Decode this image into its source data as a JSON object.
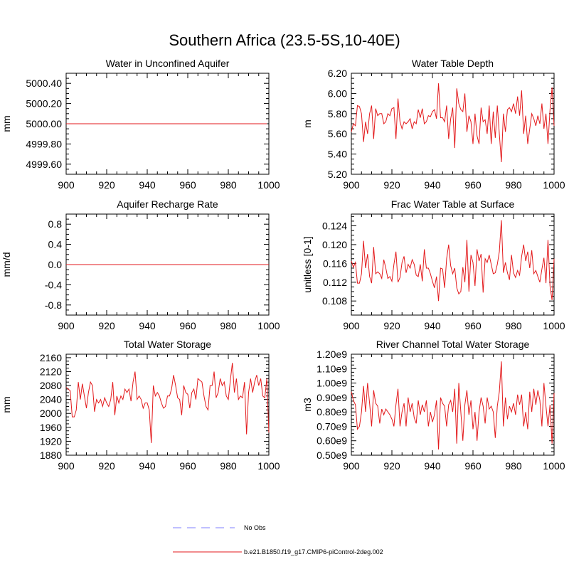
{
  "figure": {
    "title": "Southern Africa (23.5-5S,10-40E)",
    "series_color": "#e31a1c",
    "obs_color": "#9999ff"
  },
  "legend": {
    "entries": [
      {
        "label": "No Obs",
        "style": "dashed",
        "color": "#9999ff"
      },
      {
        "label": "b.e21.B1850.f19_g17.CMIP6-piControl-2deg.002",
        "style": "solid",
        "color": "#e31a1c"
      }
    ]
  },
  "chart_data": [
    {
      "type": "line",
      "title": "Water in Unconfined Aquifer",
      "ylabel": "mm",
      "xlim": [
        900,
        1000
      ],
      "ylim": [
        4999.5,
        5000.5
      ],
      "xticks": [
        900,
        920,
        940,
        960,
        980,
        1000
      ],
      "xtick_labels": [
        "900",
        "920",
        "940",
        "960",
        "980",
        "1000"
      ],
      "yticks": [
        4999.6,
        4999.8,
        5000.0,
        5000.2,
        5000.4
      ],
      "ytick_labels": [
        "4999.60",
        "4999.80",
        "5000.00",
        "5000.20",
        "5000.40"
      ],
      "x_start": 900,
      "x_step": 1,
      "values": [
        5000,
        5000,
        5000,
        5000,
        5000,
        5000,
        5000,
        5000,
        5000,
        5000,
        5000,
        5000,
        5000,
        5000,
        5000,
        5000,
        5000,
        5000,
        5000,
        5000,
        5000,
        5000,
        5000,
        5000,
        5000,
        5000,
        5000,
        5000,
        5000,
        5000,
        5000,
        5000,
        5000,
        5000,
        5000,
        5000,
        5000,
        5000,
        5000,
        5000,
        5000,
        5000,
        5000,
        5000,
        5000,
        5000,
        5000,
        5000,
        5000,
        5000,
        5000,
        5000,
        5000,
        5000,
        5000,
        5000,
        5000,
        5000,
        5000,
        5000,
        5000,
        5000,
        5000,
        5000,
        5000,
        5000,
        5000,
        5000,
        5000,
        5000,
        5000,
        5000,
        5000,
        5000,
        5000,
        5000,
        5000,
        5000,
        5000,
        5000,
        5000,
        5000,
        5000,
        5000,
        5000,
        5000,
        5000,
        5000,
        5000,
        5000,
        5000,
        5000,
        5000,
        5000,
        5000,
        5000,
        5000,
        5000,
        5000,
        5000
      ]
    },
    {
      "type": "line",
      "title": "Water Table Depth",
      "ylabel": "m",
      "xlim": [
        900,
        1000
      ],
      "ylim": [
        5.2,
        6.2
      ],
      "xticks": [
        900,
        920,
        940,
        960,
        980,
        1000
      ],
      "xtick_labels": [
        "900",
        "920",
        "940",
        "960",
        "980",
        "1000"
      ],
      "yticks": [
        5.2,
        5.4,
        5.6,
        5.8,
        6.0,
        6.2
      ],
      "ytick_labels": [
        "5.20",
        "5.40",
        "5.60",
        "5.80",
        "6.00",
        "6.20"
      ],
      "x_start": 900,
      "x_step": 1,
      "values": [
        5.62,
        5.7,
        5.68,
        5.88,
        5.87,
        5.8,
        5.52,
        5.72,
        5.6,
        5.8,
        5.88,
        5.55,
        5.85,
        5.78,
        5.8,
        5.8,
        5.7,
        5.72,
        5.8,
        5.78,
        5.85,
        5.86,
        5.55,
        5.95,
        5.72,
        5.65,
        5.72,
        5.7,
        5.72,
        5.75,
        5.65,
        5.72,
        5.7,
        5.84,
        5.76,
        5.85,
        5.7,
        5.72,
        5.78,
        5.77,
        5.82,
        5.84,
        5.75,
        6.1,
        5.76,
        5.76,
        5.72,
        5.88,
        5.55,
        5.75,
        5.86,
        5.46,
        6.05,
        5.9,
        5.84,
        5.82,
        6.0,
        5.62,
        5.78,
        5.72,
        5.5,
        5.8,
        5.58,
        5.5,
        5.86,
        5.72,
        5.74,
        5.6,
        5.88,
        5.5,
        5.82,
        5.56,
        5.88,
        5.6,
        5.32,
        5.8,
        5.62,
        5.84,
        5.86,
        5.82,
        5.9,
        5.8,
        5.97,
        5.78,
        6.03,
        5.6,
        5.78,
        5.5,
        5.65,
        5.8,
        5.75,
        5.68,
        5.78,
        5.7,
        5.9,
        5.65,
        5.8,
        5.5,
        5.84,
        6.06,
        5.68
      ]
    },
    {
      "type": "line",
      "title": "Aquifer Recharge Rate",
      "ylabel": "mm/d",
      "xlim": [
        900,
        1000
      ],
      "ylim": [
        -1.0,
        1.0
      ],
      "xticks": [
        900,
        920,
        940,
        960,
        980,
        1000
      ],
      "xtick_labels": [
        "900",
        "920",
        "940",
        "960",
        "980",
        "1000"
      ],
      "yticks": [
        -0.8,
        -0.4,
        0.0,
        0.4,
        0.8
      ],
      "ytick_labels": [
        "-0.8",
        "-0.4",
        "0.0",
        "0.4",
        "0.8"
      ],
      "x_start": 900,
      "x_step": 1,
      "values": [
        0,
        0,
        0,
        0,
        0,
        0,
        0,
        0,
        0,
        0,
        0,
        0,
        0,
        0,
        0,
        0,
        0,
        0,
        0,
        0,
        0,
        0,
        0,
        0,
        0,
        0,
        0,
        0,
        0,
        0,
        0,
        0,
        0,
        0,
        0,
        0,
        0,
        0,
        0,
        0,
        0,
        0,
        0,
        0,
        0,
        0,
        0,
        0,
        0,
        0,
        0,
        0,
        0,
        0,
        0,
        0,
        0,
        0,
        0,
        0,
        0,
        0,
        0,
        0,
        0,
        0,
        0,
        0,
        0,
        0,
        0,
        0,
        0,
        0,
        0,
        0,
        0,
        0,
        0,
        0,
        0,
        0,
        0,
        0,
        0,
        0,
        0,
        0,
        0,
        0,
        0,
        0,
        0,
        0,
        0,
        0,
        0,
        0,
        0,
        0,
        0
      ]
    },
    {
      "type": "line",
      "title": "Frac Water Table at Surface",
      "ylabel": "unitless [0-1]",
      "xlim": [
        900,
        1000
      ],
      "ylim": [
        0.105,
        0.1265
      ],
      "xticks": [
        900,
        920,
        940,
        960,
        980,
        1000
      ],
      "xtick_labels": [
        "900",
        "920",
        "940",
        "960",
        "980",
        "1000"
      ],
      "yticks": [
        0.108,
        0.112,
        0.116,
        0.12,
        0.124
      ],
      "ytick_labels": [
        "0.108",
        "0.112",
        "0.116",
        "0.120",
        "0.124"
      ],
      "x_start": 900,
      "x_step": 1,
      "values": [
        0.1165,
        0.1152,
        0.1162,
        0.1118,
        0.1118,
        0.1138,
        0.1208,
        0.115,
        0.118,
        0.1132,
        0.1118,
        0.1195,
        0.1138,
        0.1142,
        0.1138,
        0.1128,
        0.1168,
        0.115,
        0.1128,
        0.1132,
        0.1122,
        0.1158,
        0.1185,
        0.112,
        0.113,
        0.1162,
        0.1175,
        0.114,
        0.1158,
        0.115,
        0.1168,
        0.1158,
        0.1135,
        0.1132,
        0.1158,
        0.1122,
        0.119,
        0.115,
        0.115,
        0.1138,
        0.1122,
        0.1108,
        0.1132,
        0.108,
        0.115,
        0.1148,
        0.1108,
        0.117,
        0.12,
        0.1155,
        0.1138,
        0.115,
        0.1108,
        0.1095,
        0.11,
        0.1152,
        0.112,
        0.121,
        0.11,
        0.1178,
        0.1162,
        0.1112,
        0.119,
        0.1165,
        0.118,
        0.1098,
        0.117,
        0.1162,
        0.1178,
        0.1158,
        0.1138,
        0.114,
        0.1158,
        0.1185,
        0.1252,
        0.114,
        0.1162,
        0.114,
        0.1125,
        0.1178,
        0.114,
        0.113,
        0.1145,
        0.1135,
        0.1175,
        0.12,
        0.1165,
        0.1185,
        0.115,
        0.1188,
        0.1138,
        0.1145,
        0.1132,
        0.112,
        0.1148,
        0.1172,
        0.1118,
        0.121,
        0.1112,
        0.1082,
        0.117
      ]
    },
    {
      "type": "line",
      "title": "Total Water Storage",
      "ylabel": "mm",
      "xlim": [
        900,
        1000
      ],
      "ylim": [
        1880,
        2170
      ],
      "xticks": [
        900,
        920,
        940,
        960,
        980,
        1000
      ],
      "xtick_labels": [
        "900",
        "920",
        "940",
        "960",
        "980",
        "1000"
      ],
      "yticks": [
        1880,
        1920,
        1960,
        2000,
        2040,
        2080,
        2120,
        2160
      ],
      "ytick_labels": [
        "1880",
        "1920",
        "1960",
        "2000",
        "2040",
        "2080",
        "2120",
        "2160"
      ],
      "x_start": 900,
      "x_step": 1,
      "values": [
        2075,
        2070,
        2065,
        1990,
        1990,
        2010,
        2090,
        2040,
        2085,
        2050,
        2015,
        2060,
        2090,
        2080,
        2005,
        2040,
        2030,
        2040,
        2020,
        2045,
        2030,
        2020,
        2040,
        2090,
        1995,
        2050,
        2030,
        2050,
        2040,
        2070,
        2060,
        2070,
        2035,
        2090,
        2120,
        2040,
        2050,
        2040,
        2015,
        2030,
        2030,
        2010,
        1915,
        2080,
        2050,
        2060,
        2050,
        2030,
        2015,
        2020,
        2050,
        2050,
        2070,
        2110,
        2080,
        2045,
        2040,
        1995,
        2080,
        2060,
        2055,
        2015,
        2060,
        2070,
        2040,
        2100,
        2095,
        2090,
        2050,
        2020,
        2010,
        2080,
        2080,
        2120,
        2045,
        2060,
        2100,
        2080,
        2090,
        2050,
        2040,
        2095,
        2145,
        2060,
        2100,
        2040,
        2050,
        2045,
        2090,
        1940,
        2060,
        2100,
        2060,
        2090,
        2110,
        2080,
        2100,
        2050,
        2045,
        2100,
        1945
      ]
    },
    {
      "type": "line",
      "title": "River Channel Total Water Storage",
      "ylabel": "m3",
      "xlim": [
        900,
        1000
      ],
      "ylim": [
        0.5,
        1.2
      ],
      "xticks": [
        900,
        920,
        940,
        960,
        980,
        1000
      ],
      "xtick_labels": [
        "900",
        "920",
        "940",
        "960",
        "980",
        "1000"
      ],
      "yticks": [
        0.5,
        0.6,
        0.7,
        0.8,
        0.9,
        1.0,
        1.1,
        1.2
      ],
      "ytick_labels": [
        "0.50e9",
        "0.60e9",
        "0.70e9",
        "0.80e9",
        "0.90e9",
        "1.00e9",
        "1.10e9",
        "1.20e9"
      ],
      "x_start": 900,
      "x_step": 1,
      "values": [
        0.94,
        0.88,
        0.85,
        0.68,
        0.7,
        0.8,
        0.98,
        0.8,
        1.0,
        0.86,
        0.7,
        0.95,
        0.86,
        0.84,
        0.72,
        0.82,
        0.78,
        0.82,
        0.8,
        0.78,
        0.75,
        0.7,
        0.85,
        0.96,
        0.7,
        0.8,
        0.86,
        0.7,
        0.9,
        0.8,
        0.86,
        0.76,
        0.72,
        0.88,
        0.78,
        0.85,
        0.8,
        0.88,
        0.7,
        0.8,
        0.73,
        0.78,
        0.88,
        0.54,
        0.9,
        0.86,
        0.84,
        0.7,
        0.85,
        0.88,
        0.8,
        0.96,
        0.58,
        1.0,
        0.8,
        0.6,
        0.85,
        0.95,
        0.78,
        0.88,
        0.68,
        0.8,
        0.6,
        0.8,
        0.9,
        0.84,
        0.72,
        0.9,
        0.82,
        0.84,
        0.8,
        0.62,
        0.84,
        0.94,
        1.15,
        0.7,
        0.9,
        0.75,
        0.84,
        0.8,
        0.86,
        0.78,
        0.92,
        0.85,
        0.92,
        0.7,
        0.8,
        0.68,
        0.94,
        0.8,
        0.96,
        0.85,
        0.95,
        0.88,
        0.7,
        1.0,
        0.84,
        0.7,
        0.85,
        0.58,
        0.93
      ]
    }
  ]
}
